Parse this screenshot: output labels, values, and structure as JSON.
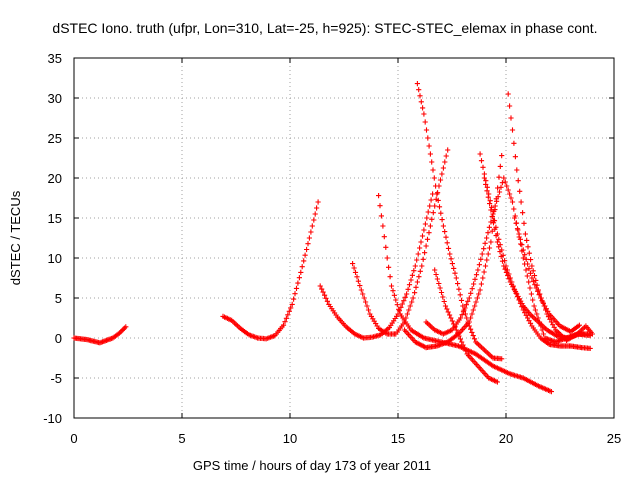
{
  "chart_data": {
    "type": "scatter",
    "title": "dSTEC Iono. truth (ufpr, Lon=310, Lat=-25, h=925): STEC-STEC_elemax in phase cont.",
    "xlabel": "GPS time / hours of day 173 of year 2011",
    "ylabel": "dSTEC  / TECUs",
    "xlim": [
      0,
      25
    ],
    "ylim": [
      -10,
      35
    ],
    "xticks": [
      0,
      5,
      10,
      15,
      20,
      25
    ],
    "yticks": [
      -10,
      -5,
      0,
      5,
      10,
      15,
      20,
      25,
      30,
      35
    ],
    "grid": true,
    "marker": "+",
    "color": "#ff0000",
    "series": [
      {
        "x": [
          0.0,
          0.3,
          0.6,
          0.9,
          1.2,
          1.5,
          1.8,
          2.1,
          2.4
        ],
        "y": [
          0.0,
          -0.1,
          -0.2,
          -0.4,
          -0.6,
          -0.3,
          0.0,
          0.6,
          1.4
        ]
      },
      {
        "x": [
          6.9,
          7.3,
          7.7,
          8.1,
          8.5,
          8.9,
          9.3,
          9.7,
          10.1,
          10.5,
          10.9,
          11.3
        ],
        "y": [
          2.7,
          2.2,
          1.2,
          0.4,
          0.0,
          -0.1,
          0.3,
          1.6,
          4.2,
          8.2,
          12.5,
          17.0
        ]
      },
      {
        "x": [
          11.4,
          11.8,
          12.2,
          12.6,
          13.0,
          13.4,
          13.8,
          14.2,
          14.6,
          15.0,
          15.4,
          15.8,
          16.2,
          16.6
        ],
        "y": [
          6.5,
          4.2,
          2.6,
          1.4,
          0.5,
          0.0,
          0.1,
          0.4,
          1.3,
          3.0,
          5.5,
          9.0,
          13.5,
          18.0
        ]
      },
      {
        "x": [
          12.9,
          13.3,
          13.7,
          14.1,
          14.5,
          14.9,
          15.3,
          15.7,
          16.1,
          16.5,
          16.9,
          17.3
        ],
        "y": [
          9.3,
          6.0,
          3.0,
          1.2,
          0.5,
          0.5,
          2.0,
          5.0,
          9.0,
          14.0,
          19.0,
          23.5
        ]
      },
      {
        "x": [
          14.1,
          14.3,
          14.5,
          14.7,
          15.1,
          15.6,
          16.2,
          17.0,
          17.8,
          18.6,
          19.4,
          20.2,
          20.8,
          21.5,
          22.1
        ],
        "y": [
          17.8,
          14.0,
          10.0,
          6.5,
          3.0,
          1.0,
          0.0,
          -0.5,
          -1.0,
          -2.0,
          -3.5,
          -4.5,
          -5.0,
          -6.0,
          -6.7
        ]
      },
      {
        "x": [
          15.9,
          16.2,
          16.5,
          16.8,
          17.1,
          17.4,
          17.7,
          18.0,
          18.3,
          18.6,
          19.0,
          19.4,
          19.8
        ],
        "y": [
          31.8,
          28.0,
          23.0,
          18.0,
          14.0,
          10.5,
          7.5,
          4.0,
          1.5,
          -0.5,
          -1.5,
          -2.5,
          -2.6
        ]
      },
      {
        "x": [
          15.3,
          15.8,
          16.3,
          16.8,
          17.3,
          17.8,
          18.3,
          18.8,
          19.3,
          19.8
        ],
        "y": [
          1.0,
          -0.5,
          -1.2,
          -1.0,
          -0.5,
          0.5,
          2.0,
          6.0,
          12.0,
          22.8
        ]
      },
      {
        "x": [
          16.3,
          16.7,
          17.1,
          17.5,
          17.9,
          18.3,
          18.7,
          19.1,
          19.5,
          19.9,
          20.3,
          20.8,
          21.3,
          21.8,
          22.3,
          22.8,
          23.3,
          23.9
        ],
        "y": [
          2.0,
          1.0,
          0.5,
          1.0,
          2.5,
          5.0,
          8.5,
          12.5,
          16.5,
          20.0,
          17.0,
          10.0,
          4.0,
          0.0,
          -0.5,
          0.0,
          0.5,
          0.3
        ]
      },
      {
        "x": [
          18.8,
          19.2,
          19.6,
          20.0,
          20.4,
          20.8,
          21.2,
          21.6,
          22.0,
          22.5,
          23.0,
          23.5,
          23.9
        ],
        "y": [
          23.0,
          18.0,
          13.0,
          9.0,
          6.0,
          3.5,
          1.5,
          0.0,
          -0.8,
          -1.0,
          -1.0,
          -1.2,
          -1.3
        ]
      },
      {
        "x": [
          19.0,
          19.3,
          19.6,
          19.9,
          20.2,
          20.5,
          20.8,
          21.1,
          21.5,
          21.9,
          22.4,
          22.9,
          23.4,
          23.9
        ],
        "y": [
          20.0,
          16.0,
          12.0,
          9.0,
          7.0,
          5.5,
          4.0,
          3.0,
          2.0,
          1.0,
          0.2,
          0.0,
          0.5,
          0.5
        ]
      },
      {
        "x": [
          16.7,
          17.2,
          17.7,
          18.2,
          18.7,
          19.2,
          19.6
        ],
        "y": [
          8.5,
          4.0,
          1.0,
          -2.0,
          -3.5,
          -5.0,
          -5.5
        ]
      },
      {
        "x": [
          20.1,
          20.3,
          20.5,
          20.7,
          20.9,
          21.2,
          21.5,
          21.9,
          22.3,
          22.8,
          23.3,
          23.7,
          24.0
        ],
        "y": [
          30.5,
          26.0,
          21.0,
          17.0,
          13.0,
          9.0,
          6.0,
          3.0,
          1.0,
          -0.3,
          0.5,
          1.5,
          0.5
        ]
      },
      {
        "x": [
          20.4,
          20.8,
          21.2,
          21.6,
          22.0,
          22.5,
          23.0,
          23.4
        ],
        "y": [
          15.0,
          11.0,
          7.5,
          5.0,
          3.0,
          1.5,
          0.8,
          1.6
        ]
      }
    ]
  }
}
